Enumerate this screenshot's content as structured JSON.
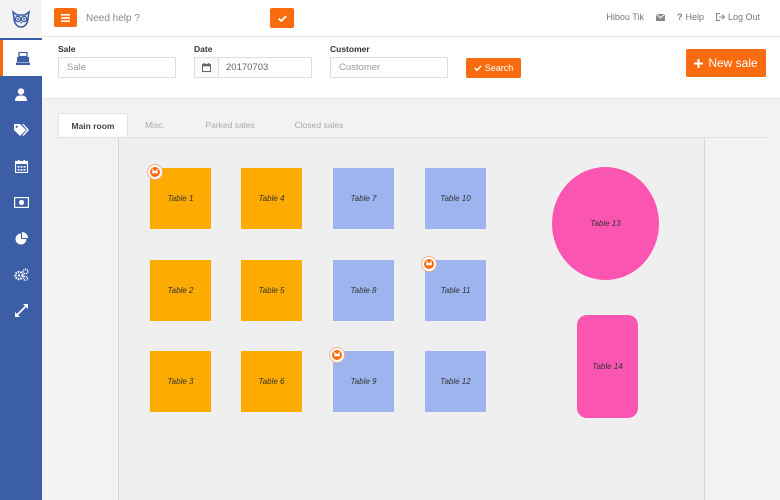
{
  "topbar": {
    "help_placeholder": "Need help ?",
    "user_name": "Hibou Tik",
    "help_label": "Help",
    "logout_label": "Log Out"
  },
  "sidebar": {
    "items": [
      {
        "name": "sidebar-item-sales",
        "icon": "cash-register-icon",
        "active": true
      },
      {
        "name": "sidebar-item-customers",
        "icon": "user-icon",
        "active": false
      },
      {
        "name": "sidebar-item-products",
        "icon": "tags-icon",
        "active": false
      },
      {
        "name": "sidebar-item-calendar",
        "icon": "calendar-icon",
        "active": false
      },
      {
        "name": "sidebar-item-cash",
        "icon": "money-icon",
        "active": false
      },
      {
        "name": "sidebar-item-reports",
        "icon": "pie-chart-icon",
        "active": false
      },
      {
        "name": "sidebar-item-settings",
        "icon": "gears-icon",
        "active": false
      },
      {
        "name": "sidebar-item-fullscreen",
        "icon": "expand-icon",
        "active": false
      }
    ]
  },
  "form": {
    "sale_label": "Sale",
    "sale_placeholder": "Sale",
    "date_label": "Date",
    "date_value": "20170703",
    "customer_label": "Customer",
    "customer_placeholder": "Customer",
    "search_label": "Search",
    "new_sale_label": "New sale"
  },
  "tabs": [
    {
      "label": "Main room",
      "active": true
    },
    {
      "label": "Misc.",
      "active": false
    },
    {
      "label": "Parked sales",
      "active": false
    },
    {
      "label": "Closed sales",
      "active": false
    }
  ],
  "tables": {
    "t1": {
      "label": "Table 1",
      "color": "#fdab00",
      "occupied": true
    },
    "t2": {
      "label": "Table 2",
      "color": "#fdab00",
      "occupied": false
    },
    "t3": {
      "label": "Table 3",
      "color": "#fdab00",
      "occupied": false
    },
    "t4": {
      "label": "Table 4",
      "color": "#fdab00",
      "occupied": false
    },
    "t5": {
      "label": "Table 5",
      "color": "#fdab00",
      "occupied": false
    },
    "t6": {
      "label": "Table 6",
      "color": "#fdab00",
      "occupied": false
    },
    "t7": {
      "label": "Table 7",
      "color": "#9db4ef",
      "occupied": false
    },
    "t8": {
      "label": "Table 8",
      "color": "#9db4ef",
      "occupied": false
    },
    "t9": {
      "label": "Table 9",
      "color": "#9db4ef",
      "occupied": true
    },
    "t10": {
      "label": "Table 10",
      "color": "#9db4ef",
      "occupied": false
    },
    "t11": {
      "label": "Table 11",
      "color": "#9db4ef",
      "occupied": true
    },
    "t12": {
      "label": "Table 12",
      "color": "#9db4ef",
      "occupied": false
    },
    "t13": {
      "label": "Table 13",
      "color": "#fb55b2",
      "shape": "round",
      "occupied": false
    },
    "t14": {
      "label": "Table 14",
      "color": "#fb55b2",
      "shape": "rounded-rect",
      "occupied": false
    }
  },
  "colors": {
    "accent": "#f86c0f",
    "sidebar": "#3b5ea6"
  }
}
